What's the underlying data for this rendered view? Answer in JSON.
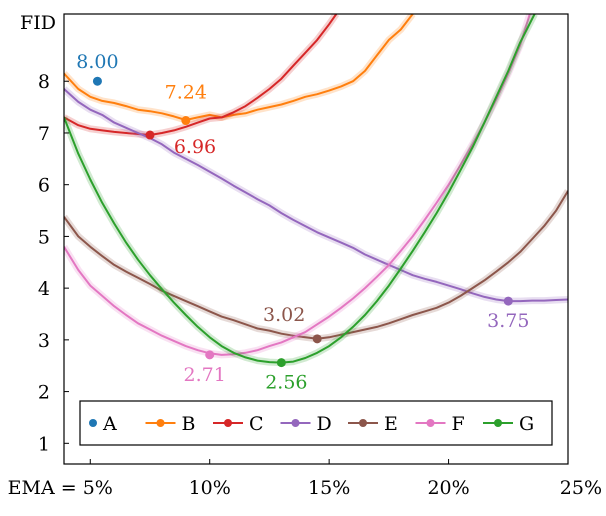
{
  "chart_data": {
    "type": "line",
    "title": "",
    "xlabel": "EMA",
    "ylabel": "FID",
    "xlim": [
      3.9,
      25
    ],
    "ylim": [
      0.6,
      9.3
    ],
    "x_ticks": [
      {
        "value": 5,
        "label": "EMA = 5%"
      },
      {
        "value": 10,
        "label": "10%"
      },
      {
        "value": 15,
        "label": "15%"
      },
      {
        "value": 20,
        "label": "20%"
      },
      {
        "value": 25,
        "label": "25%"
      }
    ],
    "y_ticks": [
      {
        "value": 1,
        "label": "1"
      },
      {
        "value": 2,
        "label": "2"
      },
      {
        "value": 3,
        "label": "3"
      },
      {
        "value": 4,
        "label": "4"
      },
      {
        "value": 5,
        "label": "5"
      },
      {
        "value": 6,
        "label": "6"
      },
      {
        "value": 7,
        "label": "7"
      },
      {
        "value": 8,
        "label": "8"
      }
    ],
    "legend_position": "bottom",
    "series": [
      {
        "name": "A",
        "color": "#1f77b4",
        "marker_only": true,
        "points": [
          [
            5.3,
            8.0
          ]
        ],
        "best": {
          "x": 5.3,
          "y": 8.0,
          "label": "8.00"
        }
      },
      {
        "name": "B",
        "color": "#ff7f0e",
        "points": [
          [
            3.9,
            8.15
          ],
          [
            4.5,
            7.85
          ],
          [
            5.0,
            7.7
          ],
          [
            5.5,
            7.62
          ],
          [
            6.0,
            7.58
          ],
          [
            6.5,
            7.52
          ],
          [
            7.0,
            7.45
          ],
          [
            7.5,
            7.42
          ],
          [
            8.0,
            7.38
          ],
          [
            8.5,
            7.32
          ],
          [
            9.0,
            7.25
          ],
          [
            9.5,
            7.3
          ],
          [
            10.0,
            7.35
          ],
          [
            10.5,
            7.3
          ],
          [
            11.0,
            7.35
          ],
          [
            11.5,
            7.38
          ],
          [
            12.0,
            7.45
          ],
          [
            12.5,
            7.5
          ],
          [
            13.0,
            7.55
          ],
          [
            13.5,
            7.62
          ],
          [
            14.0,
            7.7
          ],
          [
            14.5,
            7.75
          ],
          [
            15.0,
            7.82
          ],
          [
            15.5,
            7.9
          ],
          [
            16.0,
            8.0
          ],
          [
            16.5,
            8.2
          ],
          [
            17.0,
            8.5
          ],
          [
            17.5,
            8.8
          ],
          [
            18.0,
            9.0
          ],
          [
            18.5,
            9.3
          ]
        ],
        "best": {
          "x": 9.0,
          "y": 7.24,
          "label": "7.24"
        }
      },
      {
        "name": "C",
        "color": "#d62728",
        "points": [
          [
            3.9,
            7.3
          ],
          [
            4.5,
            7.15
          ],
          [
            5.0,
            7.08
          ],
          [
            5.5,
            7.05
          ],
          [
            6.0,
            7.02
          ],
          [
            6.5,
            7.0
          ],
          [
            7.0,
            6.98
          ],
          [
            7.5,
            6.96
          ],
          [
            8.0,
            7.0
          ],
          [
            8.5,
            7.05
          ],
          [
            9.0,
            7.12
          ],
          [
            9.5,
            7.2
          ],
          [
            10.0,
            7.28
          ],
          [
            10.5,
            7.3
          ],
          [
            11.0,
            7.4
          ],
          [
            11.5,
            7.52
          ],
          [
            12.0,
            7.68
          ],
          [
            12.5,
            7.85
          ],
          [
            13.0,
            8.05
          ],
          [
            13.5,
            8.3
          ],
          [
            14.0,
            8.55
          ],
          [
            14.5,
            8.8
          ],
          [
            15.0,
            9.1
          ],
          [
            15.3,
            9.3
          ]
        ],
        "best": {
          "x": 7.5,
          "y": 6.96,
          "label": "6.96"
        }
      },
      {
        "name": "D",
        "color": "#9467bd",
        "points": [
          [
            3.9,
            7.85
          ],
          [
            4.5,
            7.6
          ],
          [
            5.0,
            7.45
          ],
          [
            5.5,
            7.35
          ],
          [
            6.0,
            7.2
          ],
          [
            6.5,
            7.1
          ],
          [
            7.0,
            7.0
          ],
          [
            7.5,
            6.9
          ],
          [
            8.0,
            6.78
          ],
          [
            8.5,
            6.62
          ],
          [
            9.0,
            6.5
          ],
          [
            9.5,
            6.38
          ],
          [
            10.0,
            6.25
          ],
          [
            10.5,
            6.12
          ],
          [
            11.0,
            5.98
          ],
          [
            11.5,
            5.85
          ],
          [
            12.0,
            5.72
          ],
          [
            12.5,
            5.6
          ],
          [
            13.0,
            5.45
          ],
          [
            13.5,
            5.32
          ],
          [
            14.0,
            5.2
          ],
          [
            14.5,
            5.08
          ],
          [
            15.0,
            4.98
          ],
          [
            15.5,
            4.88
          ],
          [
            16.0,
            4.78
          ],
          [
            16.5,
            4.65
          ],
          [
            17.0,
            4.55
          ],
          [
            17.5,
            4.45
          ],
          [
            18.0,
            4.35
          ],
          [
            18.5,
            4.25
          ],
          [
            19.0,
            4.18
          ],
          [
            19.5,
            4.12
          ],
          [
            20.0,
            4.05
          ],
          [
            20.5,
            3.98
          ],
          [
            21.0,
            3.9
          ],
          [
            21.5,
            3.83
          ],
          [
            22.0,
            3.78
          ],
          [
            22.5,
            3.75
          ],
          [
            23.0,
            3.75
          ],
          [
            23.5,
            3.76
          ],
          [
            24.0,
            3.76
          ],
          [
            24.5,
            3.77
          ],
          [
            25.0,
            3.78
          ]
        ],
        "best": {
          "x": 22.5,
          "y": 3.75,
          "label": "3.75"
        }
      },
      {
        "name": "E",
        "color": "#8c564b",
        "points": [
          [
            3.9,
            5.38
          ],
          [
            4.5,
            5.0
          ],
          [
            5.0,
            4.8
          ],
          [
            5.5,
            4.62
          ],
          [
            6.0,
            4.45
          ],
          [
            6.5,
            4.32
          ],
          [
            7.0,
            4.2
          ],
          [
            7.5,
            4.08
          ],
          [
            8.0,
            3.95
          ],
          [
            8.5,
            3.85
          ],
          [
            9.0,
            3.75
          ],
          [
            9.5,
            3.65
          ],
          [
            10.0,
            3.55
          ],
          [
            10.5,
            3.45
          ],
          [
            11.0,
            3.38
          ],
          [
            11.5,
            3.3
          ],
          [
            12.0,
            3.22
          ],
          [
            12.5,
            3.18
          ],
          [
            13.0,
            3.12
          ],
          [
            13.5,
            3.08
          ],
          [
            14.0,
            3.05
          ],
          [
            14.5,
            3.02
          ],
          [
            15.0,
            3.05
          ],
          [
            15.5,
            3.1
          ],
          [
            16.0,
            3.15
          ],
          [
            16.5,
            3.2
          ],
          [
            17.0,
            3.25
          ],
          [
            17.5,
            3.32
          ],
          [
            18.0,
            3.4
          ],
          [
            18.5,
            3.48
          ],
          [
            19.0,
            3.55
          ],
          [
            19.5,
            3.62
          ],
          [
            20.0,
            3.72
          ],
          [
            20.5,
            3.85
          ],
          [
            21.0,
            4.0
          ],
          [
            21.5,
            4.15
          ],
          [
            22.0,
            4.32
          ],
          [
            22.5,
            4.5
          ],
          [
            23.0,
            4.7
          ],
          [
            23.5,
            4.95
          ],
          [
            24.0,
            5.2
          ],
          [
            24.5,
            5.5
          ],
          [
            25.0,
            5.88
          ]
        ],
        "best": {
          "x": 14.5,
          "y": 3.02,
          "label": "3.02"
        }
      },
      {
        "name": "F",
        "color": "#e377c2",
        "points": [
          [
            3.9,
            4.8
          ],
          [
            4.5,
            4.35
          ],
          [
            5.0,
            4.05
          ],
          [
            5.5,
            3.85
          ],
          [
            6.0,
            3.65
          ],
          [
            6.5,
            3.48
          ],
          [
            7.0,
            3.32
          ],
          [
            7.5,
            3.2
          ],
          [
            8.0,
            3.08
          ],
          [
            8.5,
            2.98
          ],
          [
            9.0,
            2.88
          ],
          [
            9.5,
            2.8
          ],
          [
            10.0,
            2.74
          ],
          [
            10.5,
            2.71
          ],
          [
            11.0,
            2.72
          ],
          [
            11.5,
            2.75
          ],
          [
            12.0,
            2.8
          ],
          [
            12.5,
            2.88
          ],
          [
            13.0,
            2.95
          ],
          [
            13.5,
            3.05
          ],
          [
            14.0,
            3.15
          ],
          [
            14.5,
            3.3
          ],
          [
            15.0,
            3.45
          ],
          [
            15.5,
            3.62
          ],
          [
            16.0,
            3.8
          ],
          [
            16.5,
            4.0
          ],
          [
            17.0,
            4.22
          ],
          [
            17.5,
            4.45
          ],
          [
            18.0,
            4.72
          ],
          [
            18.5,
            5.0
          ],
          [
            19.0,
            5.32
          ],
          [
            19.5,
            5.65
          ],
          [
            20.0,
            6.0
          ],
          [
            20.5,
            6.38
          ],
          [
            21.0,
            6.78
          ],
          [
            21.5,
            7.2
          ],
          [
            22.0,
            7.65
          ],
          [
            22.5,
            8.15
          ],
          [
            23.0,
            8.7
          ],
          [
            23.4,
            9.3
          ]
        ],
        "best": {
          "x": 10.0,
          "y": 2.71,
          "label": "2.71"
        }
      },
      {
        "name": "G",
        "color": "#2ca02c",
        "points": [
          [
            3.9,
            7.3
          ],
          [
            4.5,
            6.6
          ],
          [
            5.0,
            6.1
          ],
          [
            5.5,
            5.65
          ],
          [
            6.0,
            5.25
          ],
          [
            6.5,
            4.88
          ],
          [
            7.0,
            4.55
          ],
          [
            7.5,
            4.25
          ],
          [
            8.0,
            3.98
          ],
          [
            8.5,
            3.72
          ],
          [
            9.0,
            3.48
          ],
          [
            9.5,
            3.25
          ],
          [
            10.0,
            3.05
          ],
          [
            10.5,
            2.88
          ],
          [
            11.0,
            2.75
          ],
          [
            11.5,
            2.66
          ],
          [
            12.0,
            2.6
          ],
          [
            12.5,
            2.57
          ],
          [
            13.0,
            2.56
          ],
          [
            13.5,
            2.58
          ],
          [
            14.0,
            2.65
          ],
          [
            14.5,
            2.75
          ],
          [
            15.0,
            2.88
          ],
          [
            15.5,
            3.05
          ],
          [
            16.0,
            3.25
          ],
          [
            16.5,
            3.48
          ],
          [
            17.0,
            3.75
          ],
          [
            17.5,
            4.05
          ],
          [
            18.0,
            4.38
          ],
          [
            18.5,
            4.72
          ],
          [
            19.0,
            5.08
          ],
          [
            19.5,
            5.45
          ],
          [
            20.0,
            5.85
          ],
          [
            20.5,
            6.28
          ],
          [
            21.0,
            6.72
          ],
          [
            21.5,
            7.2
          ],
          [
            22.0,
            7.7
          ],
          [
            22.5,
            8.2
          ],
          [
            23.0,
            8.75
          ],
          [
            23.6,
            9.3
          ]
        ],
        "best": {
          "x": 13.0,
          "y": 2.56,
          "label": "2.56"
        }
      }
    ]
  }
}
